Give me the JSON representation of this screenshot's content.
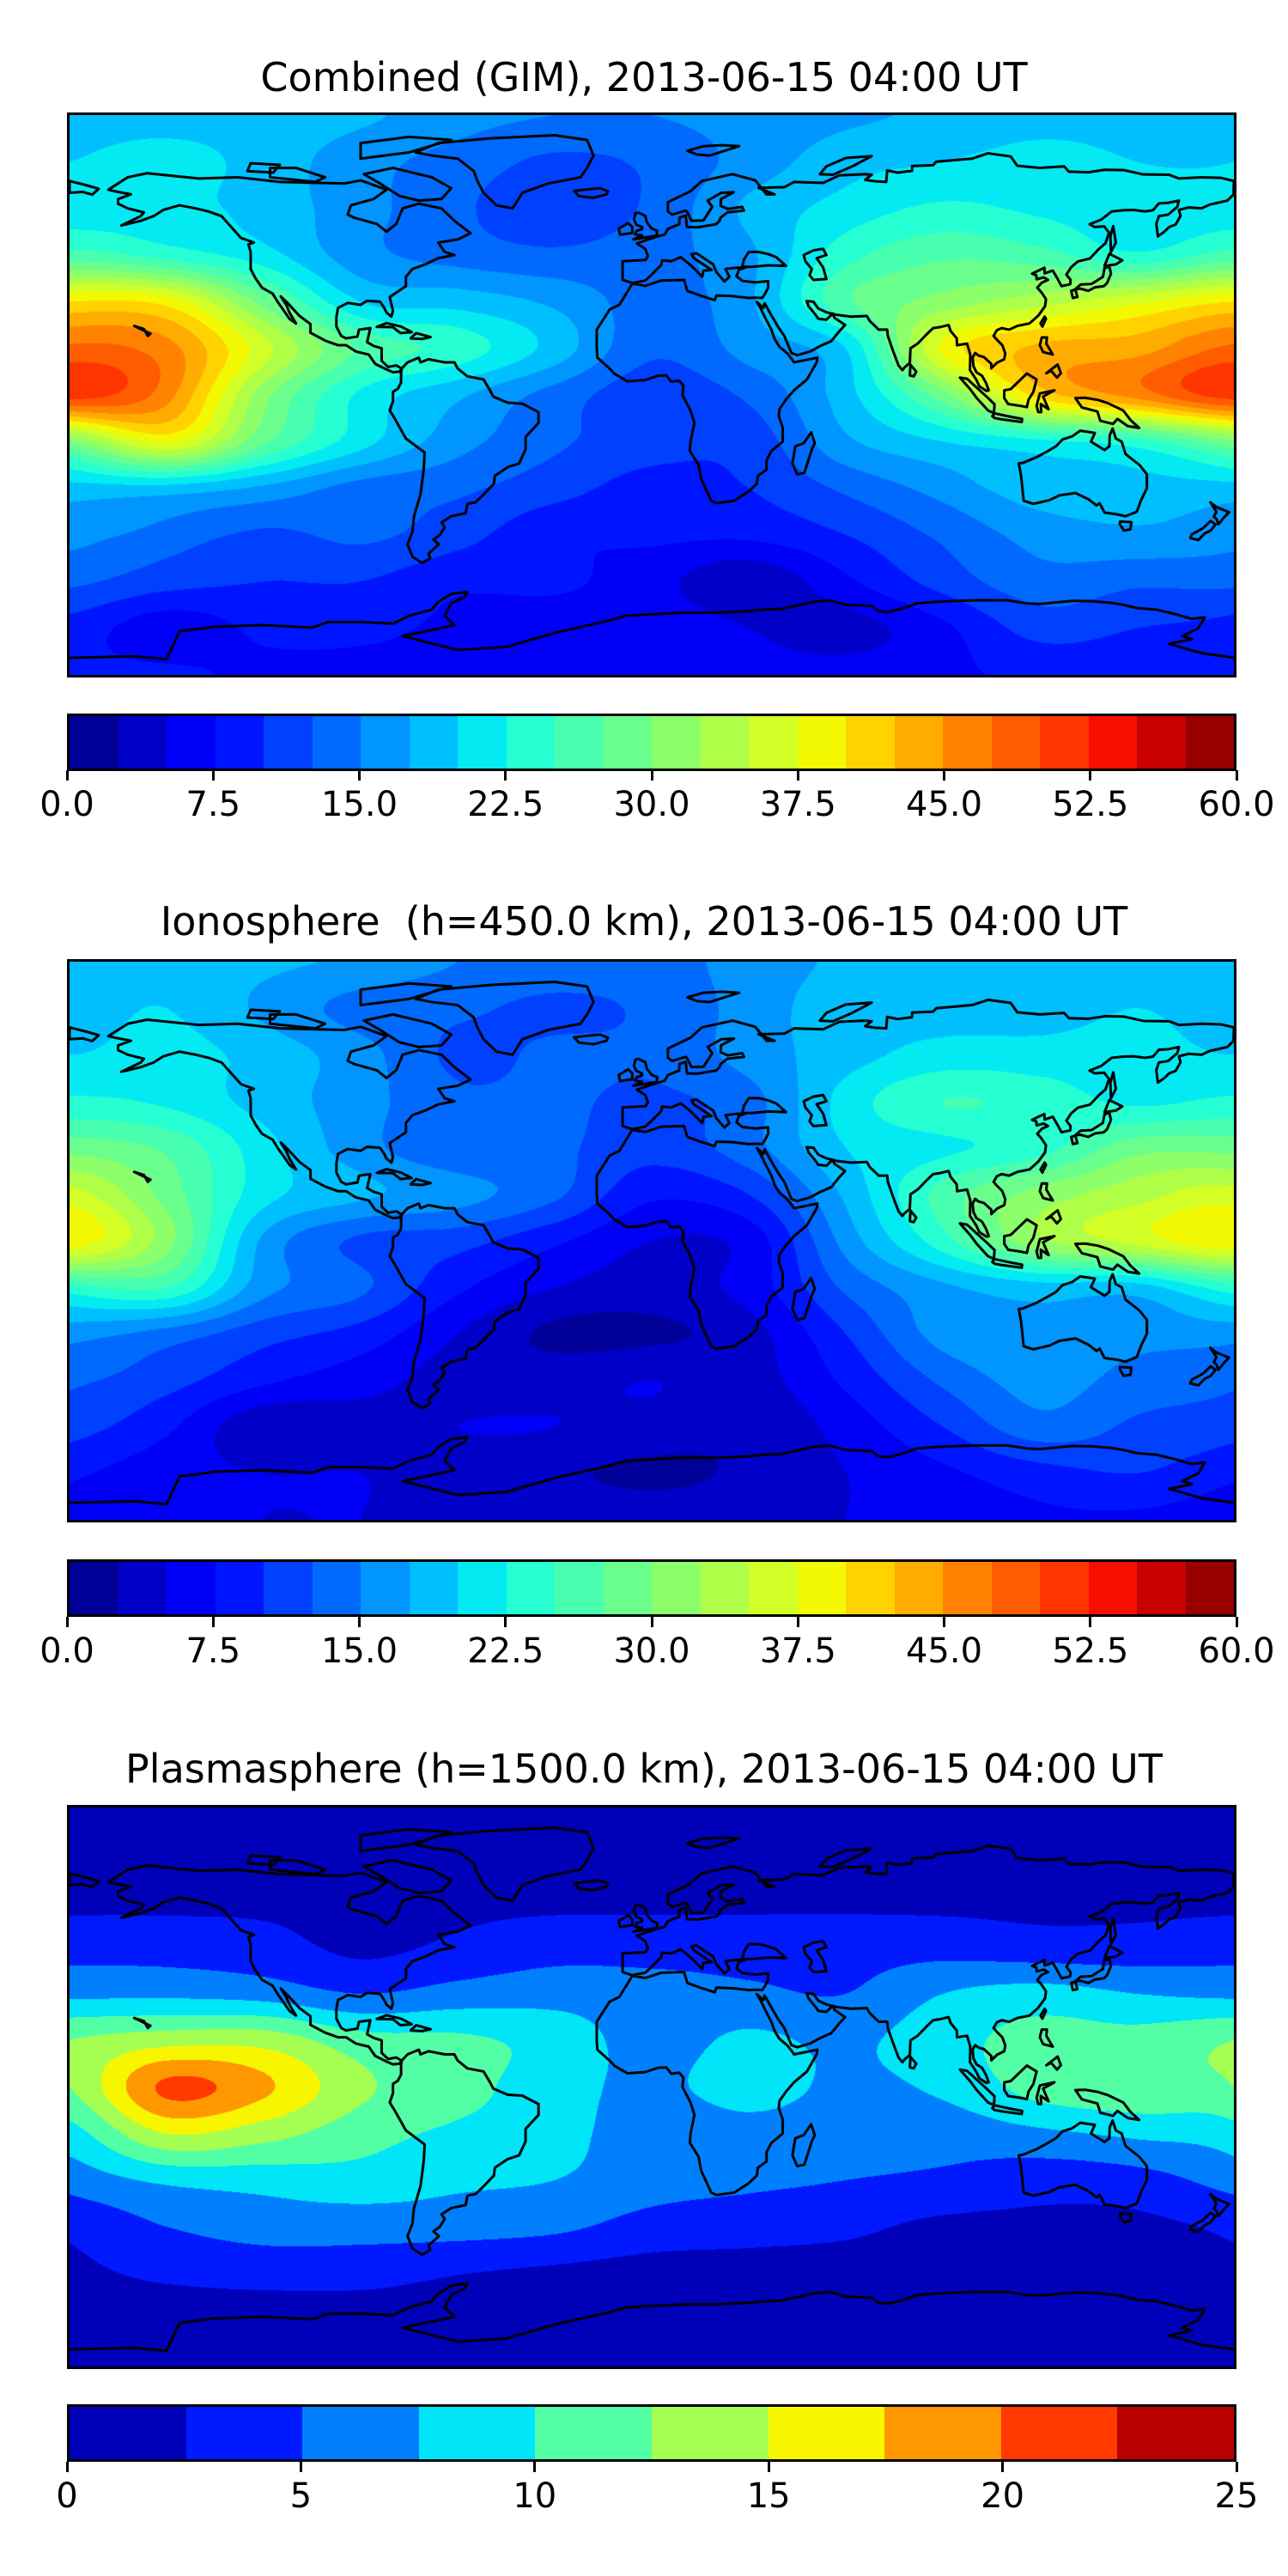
{
  "chart_data": [
    {
      "type": "heatmap",
      "title": "Combined (GIM), 2013-06-15 04:00 UT",
      "colormap": "jet",
      "colorbar": {
        "min": 0,
        "max": 60,
        "step": 2.5,
        "ticks": [
          0,
          7.5,
          15,
          22.5,
          30,
          37.5,
          45,
          52.5,
          60
        ],
        "tick_labels": [
          "0.0",
          "7.5",
          "15.0",
          "22.5",
          "30.0",
          "37.5",
          "45.0",
          "52.5",
          "60.0"
        ]
      },
      "grid": {
        "lons": [
          -180,
          -150,
          -120,
          -90,
          -60,
          -30,
          0,
          30,
          60,
          90,
          120,
          150,
          180
        ],
        "lats": [
          90,
          75,
          60,
          45,
          30,
          15,
          0,
          -15,
          -30,
          -45,
          -60,
          -75,
          -90
        ],
        "values": [
          [
            19,
            19,
            19,
            18,
            16,
            15,
            15,
            16,
            17,
            18,
            19,
            19,
            19
          ],
          [
            20,
            21,
            19,
            16,
            14,
            12,
            13,
            16,
            19,
            20,
            21,
            20,
            20
          ],
          [
            21,
            21,
            19,
            16,
            13,
            11,
            13,
            18,
            21,
            23,
            22,
            21,
            21
          ],
          [
            26,
            24,
            21,
            16,
            14,
            13,
            14,
            17,
            24,
            27,
            26,
            23,
            26
          ],
          [
            40,
            39,
            29,
            20,
            19,
            17,
            14,
            17,
            27,
            31,
            34,
            37,
            40
          ],
          [
            48,
            46,
            36,
            27,
            24,
            19,
            13,
            16,
            20,
            38,
            43,
            44,
            48
          ],
          [
            51,
            46,
            31,
            22,
            18,
            14,
            11,
            13,
            19,
            29,
            41,
            46,
            51
          ],
          [
            30,
            38,
            28,
            21,
            16,
            13,
            11,
            11,
            17,
            20,
            22,
            24,
            30
          ],
          [
            19,
            19,
            17,
            14,
            13,
            11,
            9,
            10,
            13,
            16,
            19,
            19,
            19
          ],
          [
            16,
            14,
            12,
            13,
            11,
            8,
            8,
            8,
            10,
            13,
            16,
            17,
            16
          ],
          [
            13,
            11,
            10,
            10,
            8,
            8,
            6,
            3,
            7,
            11,
            14,
            13,
            13
          ],
          [
            9,
            6,
            8,
            8,
            7,
            6,
            7,
            5,
            4,
            7,
            11,
            10,
            9
          ],
          [
            8,
            8,
            7,
            7,
            7,
            7,
            7,
            6,
            6,
            7,
            8,
            8,
            8
          ]
        ]
      }
    },
    {
      "type": "heatmap",
      "title": "Ionosphere  (h=450.0 km), 2013-06-15 04:00 UT",
      "colormap": "jet",
      "colorbar": {
        "min": 0,
        "max": 60,
        "step": 2.5,
        "ticks": [
          0,
          7.5,
          15,
          22.5,
          30,
          37.5,
          45,
          52.5,
          60
        ],
        "tick_labels": [
          "0.0",
          "7.5",
          "15.0",
          "22.5",
          "30.0",
          "37.5",
          "45.0",
          "52.5",
          "60.0"
        ]
      },
      "grid": {
        "lons": [
          -180,
          -150,
          -120,
          -90,
          -60,
          -30,
          0,
          30,
          60,
          90,
          120,
          150,
          180
        ],
        "lats": [
          90,
          75,
          60,
          45,
          30,
          15,
          0,
          -15,
          -30,
          -45,
          -60,
          -75,
          -90
        ],
        "values": [
          [
            19,
            19,
            18,
            17,
            15,
            14,
            14,
            16,
            18,
            19,
            19,
            19,
            19
          ],
          [
            19,
            20,
            17,
            14,
            13,
            12,
            13,
            16,
            19,
            19,
            19,
            20,
            19
          ],
          [
            20,
            21,
            19,
            16,
            12,
            13,
            13,
            16,
            19,
            21,
            21,
            21,
            20
          ],
          [
            23,
            22,
            19,
            16,
            13,
            13,
            12,
            14,
            21,
            25,
            24,
            22,
            23
          ],
          [
            29,
            27,
            21,
            16,
            13,
            13,
            11,
            14,
            20,
            22,
            24,
            29,
            29
          ],
          [
            36,
            29,
            21,
            18,
            16,
            13,
            8,
            10,
            18,
            26,
            31,
            34,
            36
          ],
          [
            39,
            31,
            17,
            12,
            11,
            8,
            5,
            6,
            16,
            24,
            32,
            36,
            39
          ],
          [
            24,
            25,
            16,
            13,
            8,
            5,
            4,
            6,
            13,
            17,
            19,
            19,
            24
          ],
          [
            16,
            14,
            11,
            9,
            5,
            2,
            2,
            4,
            10,
            16,
            17,
            16,
            16
          ],
          [
            13,
            11,
            8,
            6,
            4,
            4,
            5,
            4,
            8,
            13,
            16,
            14,
            13
          ],
          [
            11,
            8,
            3,
            4,
            5,
            5,
            4,
            3,
            6,
            10,
            14,
            12,
            11
          ],
          [
            8,
            6,
            5,
            5,
            4,
            3,
            2,
            3,
            5,
            7,
            9,
            10,
            8
          ],
          [
            6,
            6,
            5,
            5,
            4,
            4,
            4,
            4,
            5,
            6,
            7,
            7,
            6
          ]
        ]
      }
    },
    {
      "type": "heatmap",
      "title": "Plasmasphere (h=1500.0 km), 2013-06-15 04:00 UT",
      "colormap": "jet",
      "colorbar": {
        "min": 0,
        "max": 25,
        "step": 2.5,
        "ticks": [
          0,
          5,
          10,
          15,
          20,
          25
        ],
        "tick_labels": [
          "0",
          "5",
          "10",
          "15",
          "20",
          "25"
        ]
      },
      "grid": {
        "lons": [
          -180,
          -150,
          -120,
          -90,
          -60,
          -30,
          0,
          30,
          60,
          90,
          120,
          150,
          180
        ],
        "lats": [
          90,
          75,
          60,
          45,
          30,
          15,
          0,
          -15,
          -30,
          -45,
          -60,
          -75,
          -90
        ],
        "values": [
          [
            1,
            1,
            1,
            1,
            1,
            1,
            1,
            1,
            1,
            1,
            1,
            1,
            1
          ],
          [
            1.5,
            1.5,
            1.5,
            1.5,
            1.5,
            1.5,
            1.5,
            1.5,
            1.5,
            1.5,
            1.5,
            1.5,
            1.5
          ],
          [
            2,
            2,
            2,
            1.8,
            2,
            2,
            2,
            2,
            2,
            2,
            2,
            2,
            2
          ],
          [
            4,
            4,
            3.5,
            2,
            3,
            4,
            4,
            4,
            4,
            4,
            3.5,
            3.5,
            4
          ],
          [
            7,
            7,
            6.5,
            5,
            6,
            6.5,
            6,
            5.5,
            5,
            7.5,
            8.5,
            7.5,
            7
          ],
          [
            12.5,
            14,
            14,
            11,
            10.5,
            9,
            6.5,
            8,
            7,
            9,
            11,
            11,
            12.5
          ],
          [
            12.5,
            20.5,
            18,
            13,
            11,
            8.5,
            7,
            8.5,
            7,
            8,
            11,
            12,
            12.5
          ],
          [
            9,
            15,
            13.5,
            11,
            9.5,
            8.5,
            6,
            6.5,
            6,
            6,
            7,
            8,
            9
          ],
          [
            6,
            8,
            8.5,
            9,
            8,
            7.5,
            6,
            5.5,
            5,
            4.5,
            3.5,
            4,
            6
          ],
          [
            3,
            5,
            6,
            6,
            6,
            5.5,
            4,
            3.5,
            3,
            2,
            2,
            2,
            3
          ],
          [
            2,
            3,
            3.5,
            3.5,
            2.6,
            2,
            1.5,
            1.5,
            1.5,
            1.5,
            1.5,
            1.8,
            2
          ],
          [
            1,
            1,
            1,
            1,
            1,
            1,
            1,
            1,
            1,
            1,
            1,
            1,
            1
          ],
          [
            1,
            1,
            1,
            1,
            1,
            1,
            1,
            1,
            1,
            1,
            1,
            1,
            1
          ]
        ]
      }
    }
  ]
}
